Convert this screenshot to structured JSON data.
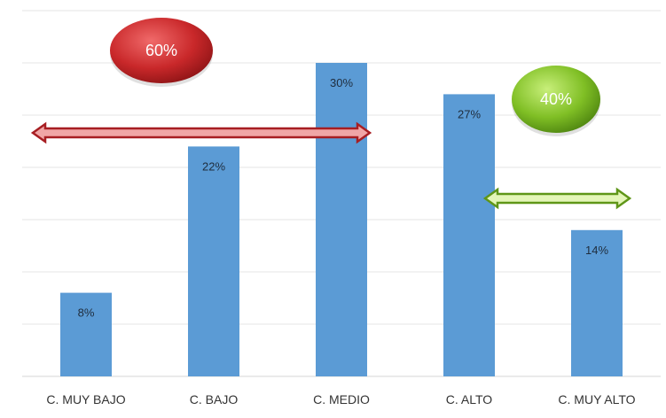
{
  "chart_data": {
    "type": "bar",
    "categories": [
      "C. MUY BAJO",
      "C. BAJO",
      "C. MEDIO",
      "C. ALTO",
      "C. MUY ALTO"
    ],
    "values": [
      8,
      22,
      30,
      27,
      14
    ],
    "value_labels": [
      "8%",
      "22%",
      "30%",
      "27%",
      "14%"
    ],
    "ylim": [
      0,
      35
    ],
    "grid": true,
    "legend": "none",
    "bar_color": "#5b9bd5",
    "annotations": [
      {
        "text": "60%",
        "color": "#c0282a",
        "span": [
          "C. MUY BAJO",
          "C. MEDIO"
        ]
      },
      {
        "text": "40%",
        "color": "#7dbb1e",
        "span": [
          "C. ALTO",
          "C. MUY ALTO"
        ]
      }
    ]
  }
}
